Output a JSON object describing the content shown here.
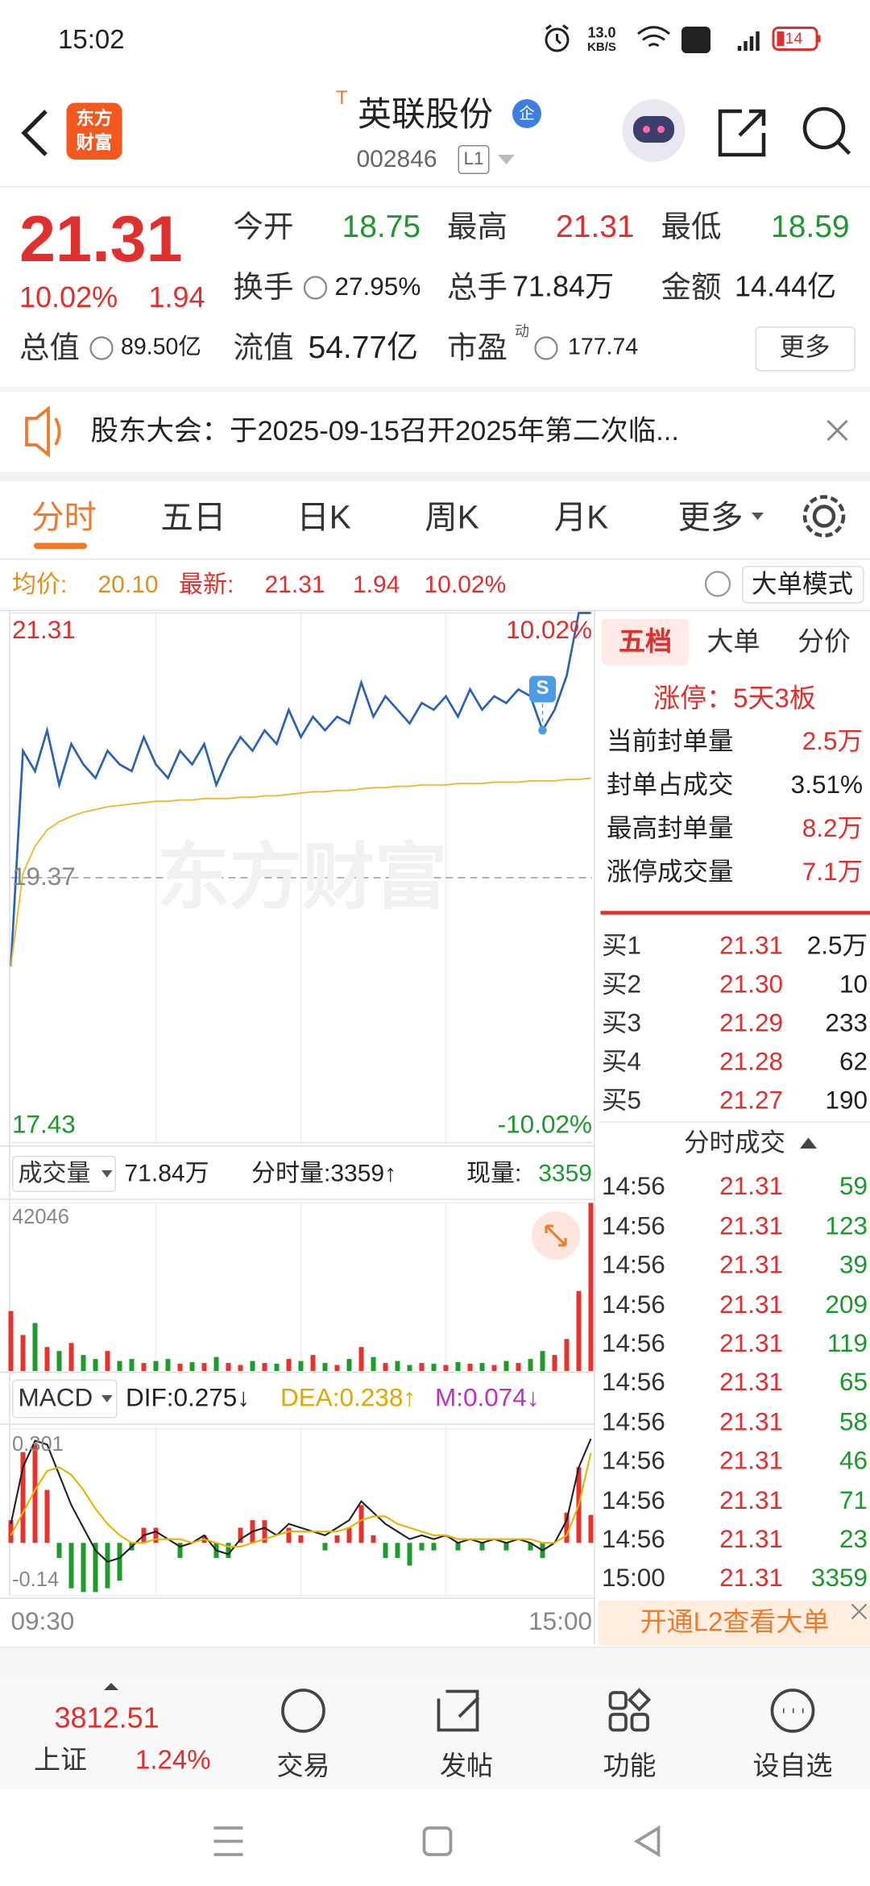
{
  "status_bar": {
    "time": "15:02",
    "net_speed": "13.0",
    "net_unit": "KB/S",
    "battery": "14"
  },
  "header": {
    "logo": [
      "东方",
      "财富"
    ],
    "tag": "T",
    "name": "英联股份",
    "badge": "企",
    "code": "002846",
    "level": "L1"
  },
  "quote": {
    "price": "21.31",
    "change_pct": "10.02%",
    "change": "1.94",
    "fields": [
      {
        "label": "今开",
        "value": "18.75",
        "color": "#1a9a2a"
      },
      {
        "label": "最高",
        "value": "21.31",
        "color": "#e0302d"
      },
      {
        "label": "最低",
        "value": "18.59",
        "color": "#1a9a2a"
      },
      {
        "label": "换手",
        "value": "27.95%",
        "color": "#222222"
      },
      {
        "label": "总手",
        "value": "71.84万",
        "color": "#222222"
      },
      {
        "label": "金额",
        "value": "14.44亿",
        "color": "#222222"
      },
      {
        "label": "总值",
        "value": "89.50亿",
        "color": "#222222"
      },
      {
        "label": "流值",
        "value": "54.77亿",
        "color": "#222222"
      },
      {
        "label": "市盈",
        "sup": "动",
        "value": "177.74",
        "color": "#222222"
      }
    ],
    "more": "更多"
  },
  "notice": "股东大会：于2025-09-15召开2025年第二次临...",
  "tabs": [
    "分时",
    "五日",
    "日K",
    "周K",
    "月K",
    "更多"
  ],
  "info_bar": {
    "avg_label": "均价:",
    "avg": "20.10",
    "last_label": "最新:",
    "last": "21.31",
    "change": "1.94",
    "change_pct": "10.02%",
    "mode": "大单模式"
  },
  "chart_data": [
    {
      "type": "line",
      "watermark": "东方财富",
      "annotation": "S",
      "categories": [
        "09:30",
        null,
        null,
        null,
        null,
        null,
        null,
        null,
        null,
        null,
        null,
        null,
        null,
        null,
        null,
        null,
        null,
        null,
        null,
        null,
        null,
        null,
        null,
        null,
        null,
        null,
        null,
        null,
        null,
        null,
        null,
        null,
        null,
        null,
        null,
        null,
        null,
        null,
        null,
        null,
        null,
        null,
        null,
        null,
        null,
        null,
        null,
        null,
        "15:00"
      ],
      "series": [
        {
          "color": "#2a62b8",
          "values": [
            18.72,
            20.3,
            20.15,
            20.45,
            20.05,
            20.35,
            20.2,
            20.1,
            20.3,
            20.2,
            20.15,
            20.4,
            20.2,
            20.1,
            20.3,
            20.2,
            20.35,
            20.05,
            20.25,
            20.4,
            20.3,
            20.45,
            20.35,
            20.6,
            20.4,
            20.55,
            20.45,
            20.55,
            20.5,
            20.8,
            20.55,
            20.7,
            20.6,
            20.5,
            20.65,
            20.6,
            20.7,
            20.55,
            20.75,
            20.6,
            20.7,
            20.65,
            20.75,
            20.7,
            20.45,
            20.6,
            20.85,
            21.31,
            21.31
          ]
        },
        {
          "color": "#f0b93a",
          "values": [
            18.72,
            19.4,
            19.6,
            19.72,
            19.78,
            19.82,
            19.85,
            19.87,
            19.89,
            19.9,
            19.91,
            19.92,
            19.93,
            19.93,
            19.94,
            19.94,
            19.95,
            19.95,
            19.95,
            19.96,
            19.96,
            19.97,
            19.97,
            19.98,
            19.99,
            20.0,
            20.0,
            20.01,
            20.01,
            20.02,
            20.03,
            20.03,
            20.04,
            20.04,
            20.05,
            20.05,
            20.05,
            20.06,
            20.06,
            20.06,
            20.07,
            20.07,
            20.07,
            20.08,
            20.08,
            20.08,
            20.09,
            20.09,
            20.1
          ]
        }
      ],
      "ylim": [
        17.43,
        21.31
      ],
      "yticks": [
        17.43,
        19.37,
        21.31
      ],
      "y2lim": [
        -10.02,
        10.02
      ],
      "y2ticks": [
        {
          "value": -10.02,
          "label": "-10.02%"
        },
        {
          "value": 10.02,
          "label": "10.02%"
        }
      ]
    },
    {
      "type": "bar",
      "header": {
        "label": "成交量",
        "total": "71.84万",
        "tick_volume": "分时量:3359↑",
        "current_label": "现量:",
        "current": "3359"
      },
      "values": [
        15000,
        9000,
        12000,
        6000,
        5000,
        7000,
        4000,
        3000,
        5000,
        2500,
        3000,
        2000,
        2500,
        3000,
        1800,
        2200,
        2000,
        3500,
        2000,
        1500,
        2500,
        2000,
        1800,
        3000,
        2500,
        4000,
        2000,
        1500,
        3000,
        6000,
        3500,
        2000,
        2500,
        1500,
        2000,
        1800,
        1500,
        2200,
        1800,
        2000,
        1500,
        2500,
        2000,
        3000,
        5000,
        4000,
        8000,
        20000,
        42046
      ],
      "up_color": "#e8322e",
      "down_color": "#1f9b2c",
      "ylim": [
        0,
        42046
      ],
      "yticks": [
        42046
      ]
    },
    {
      "type": "macd",
      "header": {
        "label": "MACD",
        "legend": [
          {
            "text": "DIF:0.275↓",
            "color": "#222222"
          },
          {
            "text": "DEA:0.238↑",
            "color": "#e0a800"
          },
          {
            "text": "M:0.074↓",
            "color": "#c030c0"
          }
        ]
      },
      "series": [
        {
          "color": "#222222",
          "values": [
            0.05,
            0.2,
            0.27,
            0.26,
            0.18,
            0.1,
            0.04,
            -0.02,
            -0.05,
            -0.04,
            -0.01,
            0.02,
            0.03,
            0.01,
            -0.01,
            0.0,
            0.02,
            -0.02,
            -0.03,
            0.01,
            0.03,
            0.04,
            0.02,
            0.05,
            0.04,
            0.03,
            0.02,
            0.04,
            0.06,
            0.11,
            0.08,
            0.05,
            0.03,
            0.01,
            0.02,
            0.01,
            0.02,
            0.0,
            0.01,
            0.0,
            0.01,
            0.0,
            0.01,
            0.0,
            -0.02,
            0.0,
            0.06,
            0.2,
            0.275
          ]
        },
        {
          "color": "#e7b400",
          "values": [
            0.02,
            0.08,
            0.14,
            0.19,
            0.2,
            0.18,
            0.14,
            0.09,
            0.05,
            0.02,
            0.0,
            0.0,
            0.01,
            0.01,
            0.01,
            0.0,
            0.01,
            0.0,
            -0.01,
            -0.01,
            0.0,
            0.01,
            0.02,
            0.03,
            0.03,
            0.03,
            0.03,
            0.03,
            0.04,
            0.06,
            0.07,
            0.07,
            0.05,
            0.04,
            0.03,
            0.02,
            0.02,
            0.01,
            0.01,
            0.01,
            0.01,
            0.01,
            0.01,
            0.01,
            0.0,
            0.0,
            0.02,
            0.1,
            0.238
          ]
        },
        {
          "type": "bar",
          "up_color": "#e8322e",
          "down_color": "#1f9b2c",
          "values": [
            0.06,
            0.24,
            0.26,
            0.14,
            -0.04,
            -0.12,
            -0.13,
            -0.13,
            -0.12,
            -0.1,
            -0.02,
            0.04,
            0.04,
            0.0,
            -0.04,
            0.0,
            0.02,
            -0.04,
            -0.04,
            0.04,
            0.06,
            0.06,
            0.0,
            0.04,
            0.02,
            0.0,
            -0.02,
            0.02,
            0.04,
            0.1,
            0.02,
            -0.04,
            -0.04,
            -0.06,
            -0.02,
            -0.02,
            0.0,
            -0.02,
            0.0,
            -0.02,
            0.0,
            -0.02,
            0.0,
            -0.02,
            -0.04,
            0.0,
            0.08,
            0.2,
            0.074
          ]
        }
      ],
      "ylim": [
        -0.14,
        0.301
      ],
      "yticks": [
        -0.14,
        0.301
      ]
    }
  ],
  "right_panel": {
    "tabs": [
      "五档",
      "大单",
      "分价"
    ],
    "limit_status": "涨停：5天3板",
    "limit_stats": [
      {
        "label": "当前封单量",
        "value": "2.5万"
      },
      {
        "label": "封单占成交",
        "value": "3.51%"
      },
      {
        "label": "最高封单量",
        "value": "8.2万"
      },
      {
        "label": "涨停成交量",
        "value": "7.1万"
      }
    ],
    "order_book": [
      [
        "买1",
        "21.31",
        "2.5万"
      ],
      [
        "买2",
        "21.30",
        "10"
      ],
      [
        "买3",
        "21.29",
        "233"
      ],
      [
        "买4",
        "21.28",
        "62"
      ],
      [
        "买5",
        "21.27",
        "190"
      ]
    ],
    "trades_title": "分时成交",
    "trades": [
      [
        "14:56",
        "21.31",
        "59"
      ],
      [
        "14:56",
        "21.31",
        "123"
      ],
      [
        "14:56",
        "21.31",
        "39"
      ],
      [
        "14:56",
        "21.31",
        "209"
      ],
      [
        "14:56",
        "21.31",
        "119"
      ],
      [
        "14:56",
        "21.31",
        "65"
      ],
      [
        "14:56",
        "21.31",
        "58"
      ],
      [
        "14:56",
        "21.31",
        "46"
      ],
      [
        "14:56",
        "21.31",
        "71"
      ],
      [
        "14:56",
        "21.31",
        "23"
      ],
      [
        "15:00",
        "21.31",
        "3359"
      ]
    ],
    "l2_banner": "开通L2查看大单"
  },
  "bottom": {
    "index": {
      "value": "3812.51",
      "name": "上证",
      "change_pct": "1.24%"
    },
    "nav": [
      "交易",
      "发帖",
      "功能",
      "设自选"
    ]
  }
}
